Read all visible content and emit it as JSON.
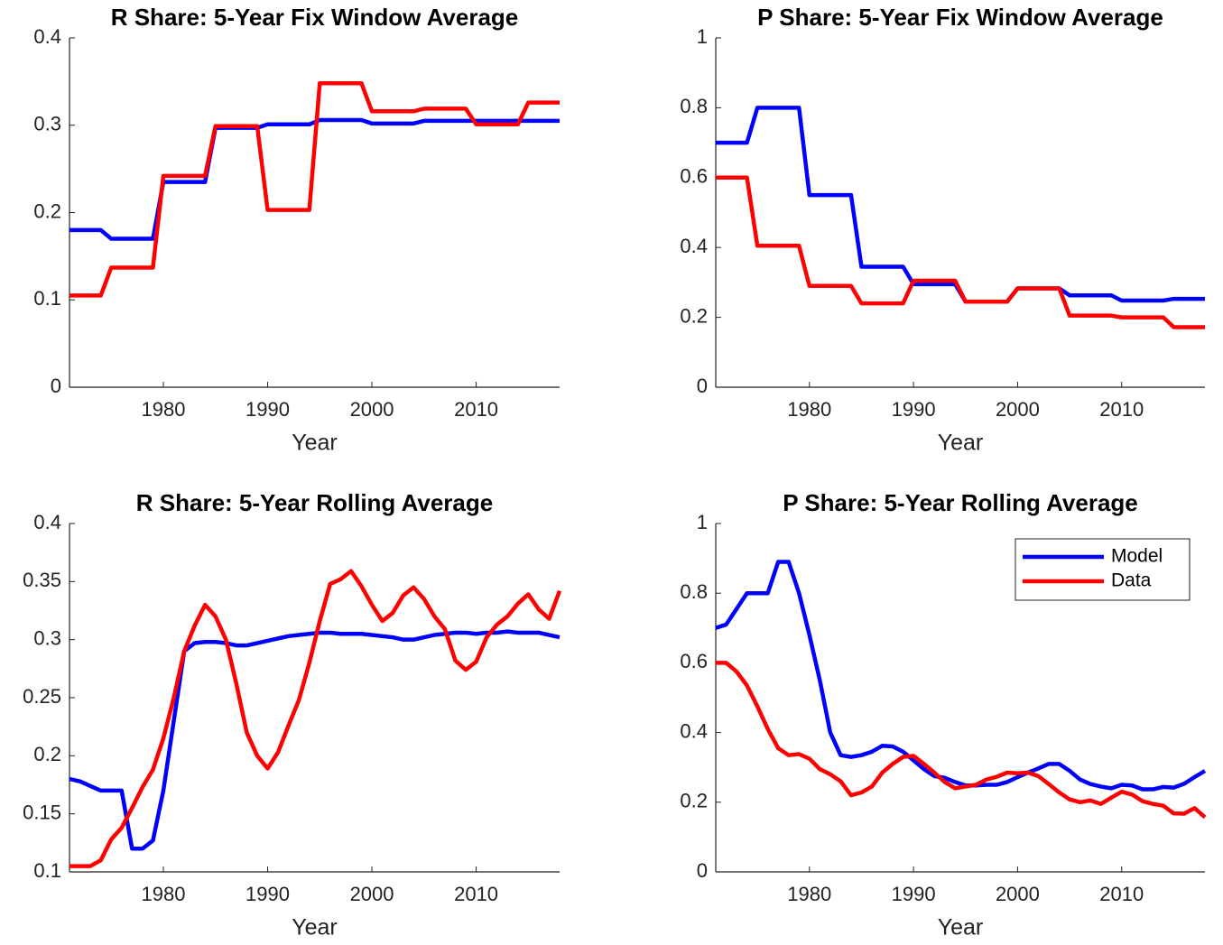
{
  "chart_data": [
    {
      "type": "line",
      "title": "R Share: 5-Year Fix Window Average",
      "x_label": "Year",
      "x": [
        1971,
        1972,
        1973,
        1974,
        1975,
        1976,
        1977,
        1978,
        1979,
        1980,
        1981,
        1982,
        1983,
        1984,
        1985,
        1986,
        1987,
        1988,
        1989,
        1990,
        1991,
        1992,
        1993,
        1994,
        1995,
        1996,
        1997,
        1998,
        1999,
        2000,
        2001,
        2002,
        2003,
        2004,
        2005,
        2006,
        2007,
        2008,
        2009,
        2010,
        2011,
        2012,
        2013,
        2014,
        2015,
        2016,
        2017,
        2018
      ],
      "xlim": [
        1971,
        2018
      ],
      "xticks": [
        1980,
        1990,
        2000,
        2010
      ],
      "ylim": [
        0,
        0.4
      ],
      "yticks": [
        0,
        0.1,
        0.2,
        0.3,
        0.4
      ],
      "series": [
        {
          "color": "#0000ff",
          "values": [
            0.18,
            0.18,
            0.18,
            0.18,
            0.17,
            0.17,
            0.17,
            0.17,
            0.17,
            0.235,
            0.235,
            0.235,
            0.235,
            0.235,
            0.297,
            0.297,
            0.297,
            0.297,
            0.297,
            0.301,
            0.301,
            0.301,
            0.301,
            0.301,
            0.306,
            0.306,
            0.306,
            0.306,
            0.306,
            0.302,
            0.302,
            0.302,
            0.302,
            0.302,
            0.305,
            0.305,
            0.305,
            0.305,
            0.305,
            0.305,
            0.305,
            0.305,
            0.305,
            0.305,
            0.305,
            0.305,
            0.305,
            0.305
          ]
        },
        {
          "color": "#ff0000",
          "values": [
            0.105,
            0.105,
            0.105,
            0.105,
            0.137,
            0.137,
            0.137,
            0.137,
            0.137,
            0.242,
            0.242,
            0.242,
            0.242,
            0.242,
            0.299,
            0.299,
            0.299,
            0.299,
            0.299,
            0.203,
            0.203,
            0.203,
            0.203,
            0.203,
            0.348,
            0.348,
            0.348,
            0.348,
            0.348,
            0.316,
            0.316,
            0.316,
            0.316,
            0.316,
            0.319,
            0.319,
            0.319,
            0.319,
            0.319,
            0.301,
            0.301,
            0.301,
            0.301,
            0.301,
            0.326,
            0.326,
            0.326,
            0.326
          ]
        }
      ]
    },
    {
      "type": "line",
      "title": "P Share: 5-Year Fix Window Average",
      "x_label": "Year",
      "x": [
        1971,
        1972,
        1973,
        1974,
        1975,
        1976,
        1977,
        1978,
        1979,
        1980,
        1981,
        1982,
        1983,
        1984,
        1985,
        1986,
        1987,
        1988,
        1989,
        1990,
        1991,
        1992,
        1993,
        1994,
        1995,
        1996,
        1997,
        1998,
        1999,
        2000,
        2001,
        2002,
        2003,
        2004,
        2005,
        2006,
        2007,
        2008,
        2009,
        2010,
        2011,
        2012,
        2013,
        2014,
        2015,
        2016,
        2017,
        2018
      ],
      "xlim": [
        1971,
        2018
      ],
      "xticks": [
        1980,
        1990,
        2000,
        2010
      ],
      "ylim": [
        0,
        1
      ],
      "yticks": [
        0,
        0.2,
        0.4,
        0.6,
        0.8,
        1
      ],
      "series": [
        {
          "color": "#0000ff",
          "values": [
            0.7,
            0.7,
            0.7,
            0.7,
            0.8,
            0.8,
            0.8,
            0.8,
            0.8,
            0.55,
            0.55,
            0.55,
            0.55,
            0.55,
            0.345,
            0.345,
            0.345,
            0.345,
            0.345,
            0.295,
            0.295,
            0.295,
            0.295,
            0.295,
            0.245,
            0.245,
            0.245,
            0.245,
            0.245,
            0.283,
            0.283,
            0.283,
            0.283,
            0.283,
            0.263,
            0.263,
            0.263,
            0.263,
            0.263,
            0.248,
            0.248,
            0.248,
            0.248,
            0.248,
            0.253,
            0.253,
            0.253,
            0.253
          ]
        },
        {
          "color": "#ff0000",
          "values": [
            0.6,
            0.6,
            0.6,
            0.6,
            0.405,
            0.405,
            0.405,
            0.405,
            0.405,
            0.29,
            0.29,
            0.29,
            0.29,
            0.29,
            0.24,
            0.24,
            0.24,
            0.24,
            0.24,
            0.305,
            0.305,
            0.305,
            0.305,
            0.305,
            0.245,
            0.245,
            0.245,
            0.245,
            0.245,
            0.283,
            0.283,
            0.283,
            0.283,
            0.283,
            0.205,
            0.205,
            0.205,
            0.205,
            0.205,
            0.2,
            0.2,
            0.2,
            0.2,
            0.2,
            0.172,
            0.172,
            0.172,
            0.172
          ]
        }
      ]
    },
    {
      "type": "line",
      "title": "R Share: 5-Year Rolling Average",
      "x_label": "Year",
      "x": [
        1971,
        1972,
        1973,
        1974,
        1975,
        1976,
        1977,
        1978,
        1979,
        1980,
        1981,
        1982,
        1983,
        1984,
        1985,
        1986,
        1987,
        1988,
        1989,
        1990,
        1991,
        1992,
        1993,
        1994,
        1995,
        1996,
        1997,
        1998,
        1999,
        2000,
        2001,
        2002,
        2003,
        2004,
        2005,
        2006,
        2007,
        2008,
        2009,
        2010,
        2011,
        2012,
        2013,
        2014,
        2015,
        2016,
        2017,
        2018
      ],
      "xlim": [
        1971,
        2018
      ],
      "xticks": [
        1980,
        1990,
        2000,
        2010
      ],
      "ylim": [
        0.1,
        0.4
      ],
      "yticks": [
        0.1,
        0.15,
        0.2,
        0.25,
        0.3,
        0.35,
        0.4
      ],
      "series": [
        {
          "color": "#0000ff",
          "values": [
            0.18,
            0.178,
            0.174,
            0.17,
            0.17,
            0.17,
            0.12,
            0.12,
            0.127,
            0.17,
            0.23,
            0.29,
            0.297,
            0.298,
            0.298,
            0.297,
            0.295,
            0.295,
            0.297,
            0.299,
            0.301,
            0.303,
            0.304,
            0.305,
            0.306,
            0.306,
            0.305,
            0.305,
            0.305,
            0.304,
            0.303,
            0.302,
            0.3,
            0.3,
            0.302,
            0.304,
            0.305,
            0.306,
            0.306,
            0.305,
            0.306,
            0.306,
            0.307,
            0.306,
            0.306,
            0.306,
            0.304,
            0.302
          ]
        },
        {
          "color": "#ff0000",
          "values": [
            0.105,
            0.105,
            0.105,
            0.11,
            0.128,
            0.138,
            0.155,
            0.173,
            0.188,
            0.215,
            0.25,
            0.29,
            0.312,
            0.33,
            0.32,
            0.3,
            0.262,
            0.22,
            0.2,
            0.189,
            0.203,
            0.226,
            0.248,
            0.28,
            0.316,
            0.348,
            0.352,
            0.359,
            0.346,
            0.33,
            0.316,
            0.323,
            0.338,
            0.345,
            0.335,
            0.32,
            0.309,
            0.282,
            0.274,
            0.281,
            0.302,
            0.313,
            0.32,
            0.331,
            0.339,
            0.326,
            0.318,
            0.342
          ]
        }
      ]
    },
    {
      "type": "line",
      "title": "P Share: 5-Year Rolling Average",
      "x_label": "Year",
      "legend": "northeast",
      "x": [
        1971,
        1972,
        1973,
        1974,
        1975,
        1976,
        1977,
        1978,
        1979,
        1980,
        1981,
        1982,
        1983,
        1984,
        1985,
        1986,
        1987,
        1988,
        1989,
        1990,
        1991,
        1992,
        1993,
        1994,
        1995,
        1996,
        1997,
        1998,
        1999,
        2000,
        2001,
        2002,
        2003,
        2004,
        2005,
        2006,
        2007,
        2008,
        2009,
        2010,
        2011,
        2012,
        2013,
        2014,
        2015,
        2016,
        2017,
        2018
      ],
      "xlim": [
        1971,
        2018
      ],
      "xticks": [
        1980,
        1990,
        2000,
        2010
      ],
      "ylim": [
        0,
        1
      ],
      "yticks": [
        0,
        0.2,
        0.4,
        0.6,
        0.8,
        1
      ],
      "series": [
        {
          "name": "Model",
          "color": "#0000ff",
          "values": [
            0.7,
            0.71,
            0.755,
            0.8,
            0.8,
            0.8,
            0.89,
            0.89,
            0.8,
            0.68,
            0.55,
            0.4,
            0.335,
            0.33,
            0.335,
            0.345,
            0.362,
            0.36,
            0.345,
            0.32,
            0.295,
            0.275,
            0.27,
            0.258,
            0.248,
            0.248,
            0.25,
            0.25,
            0.258,
            0.272,
            0.285,
            0.297,
            0.31,
            0.31,
            0.29,
            0.265,
            0.252,
            0.245,
            0.24,
            0.25,
            0.248,
            0.237,
            0.237,
            0.244,
            0.242,
            0.253,
            0.272,
            0.29
          ]
        },
        {
          "name": "Data",
          "color": "#ff0000",
          "values": [
            0.6,
            0.6,
            0.575,
            0.535,
            0.475,
            0.41,
            0.355,
            0.335,
            0.338,
            0.325,
            0.295,
            0.28,
            0.26,
            0.22,
            0.228,
            0.245,
            0.285,
            0.31,
            0.33,
            0.333,
            0.31,
            0.285,
            0.258,
            0.24,
            0.245,
            0.25,
            0.265,
            0.273,
            0.285,
            0.283,
            0.285,
            0.275,
            0.252,
            0.228,
            0.208,
            0.2,
            0.205,
            0.195,
            0.213,
            0.23,
            0.222,
            0.203,
            0.195,
            0.19,
            0.168,
            0.167,
            0.183,
            0.157
          ]
        }
      ]
    }
  ]
}
